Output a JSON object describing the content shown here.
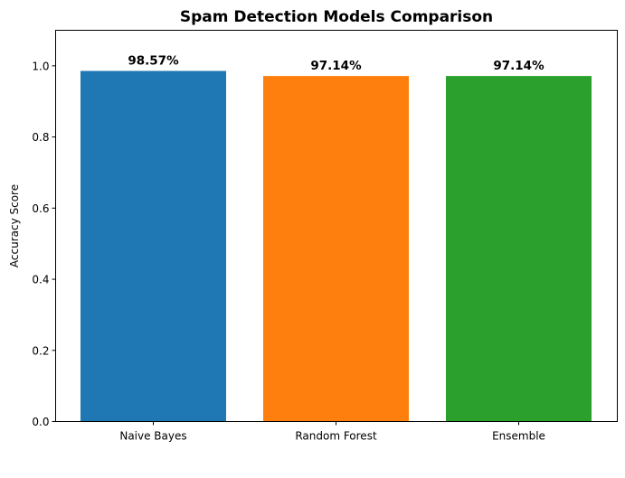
{
  "chart_data": {
    "type": "bar",
    "title": "Spam Detection Models Comparison",
    "xlabel": "",
    "ylabel": "Accuracy Score",
    "categories": [
      "Naive Bayes",
      "Random Forest",
      "Ensemble"
    ],
    "values": [
      0.9857,
      0.9714,
      0.9714
    ],
    "value_labels": [
      "98.57%",
      "97.14%",
      "97.14%"
    ],
    "colors": [
      "#1f77b4",
      "#ff7f0e",
      "#2ca02c"
    ],
    "ylim": [
      0,
      1.1
    ],
    "yticks": [
      0.0,
      0.2,
      0.4,
      0.6,
      0.8,
      1.0
    ],
    "ytick_labels": [
      "0.0",
      "0.2",
      "0.4",
      "0.6",
      "0.8",
      "1.0"
    ],
    "grid": false,
    "legend": null
  }
}
